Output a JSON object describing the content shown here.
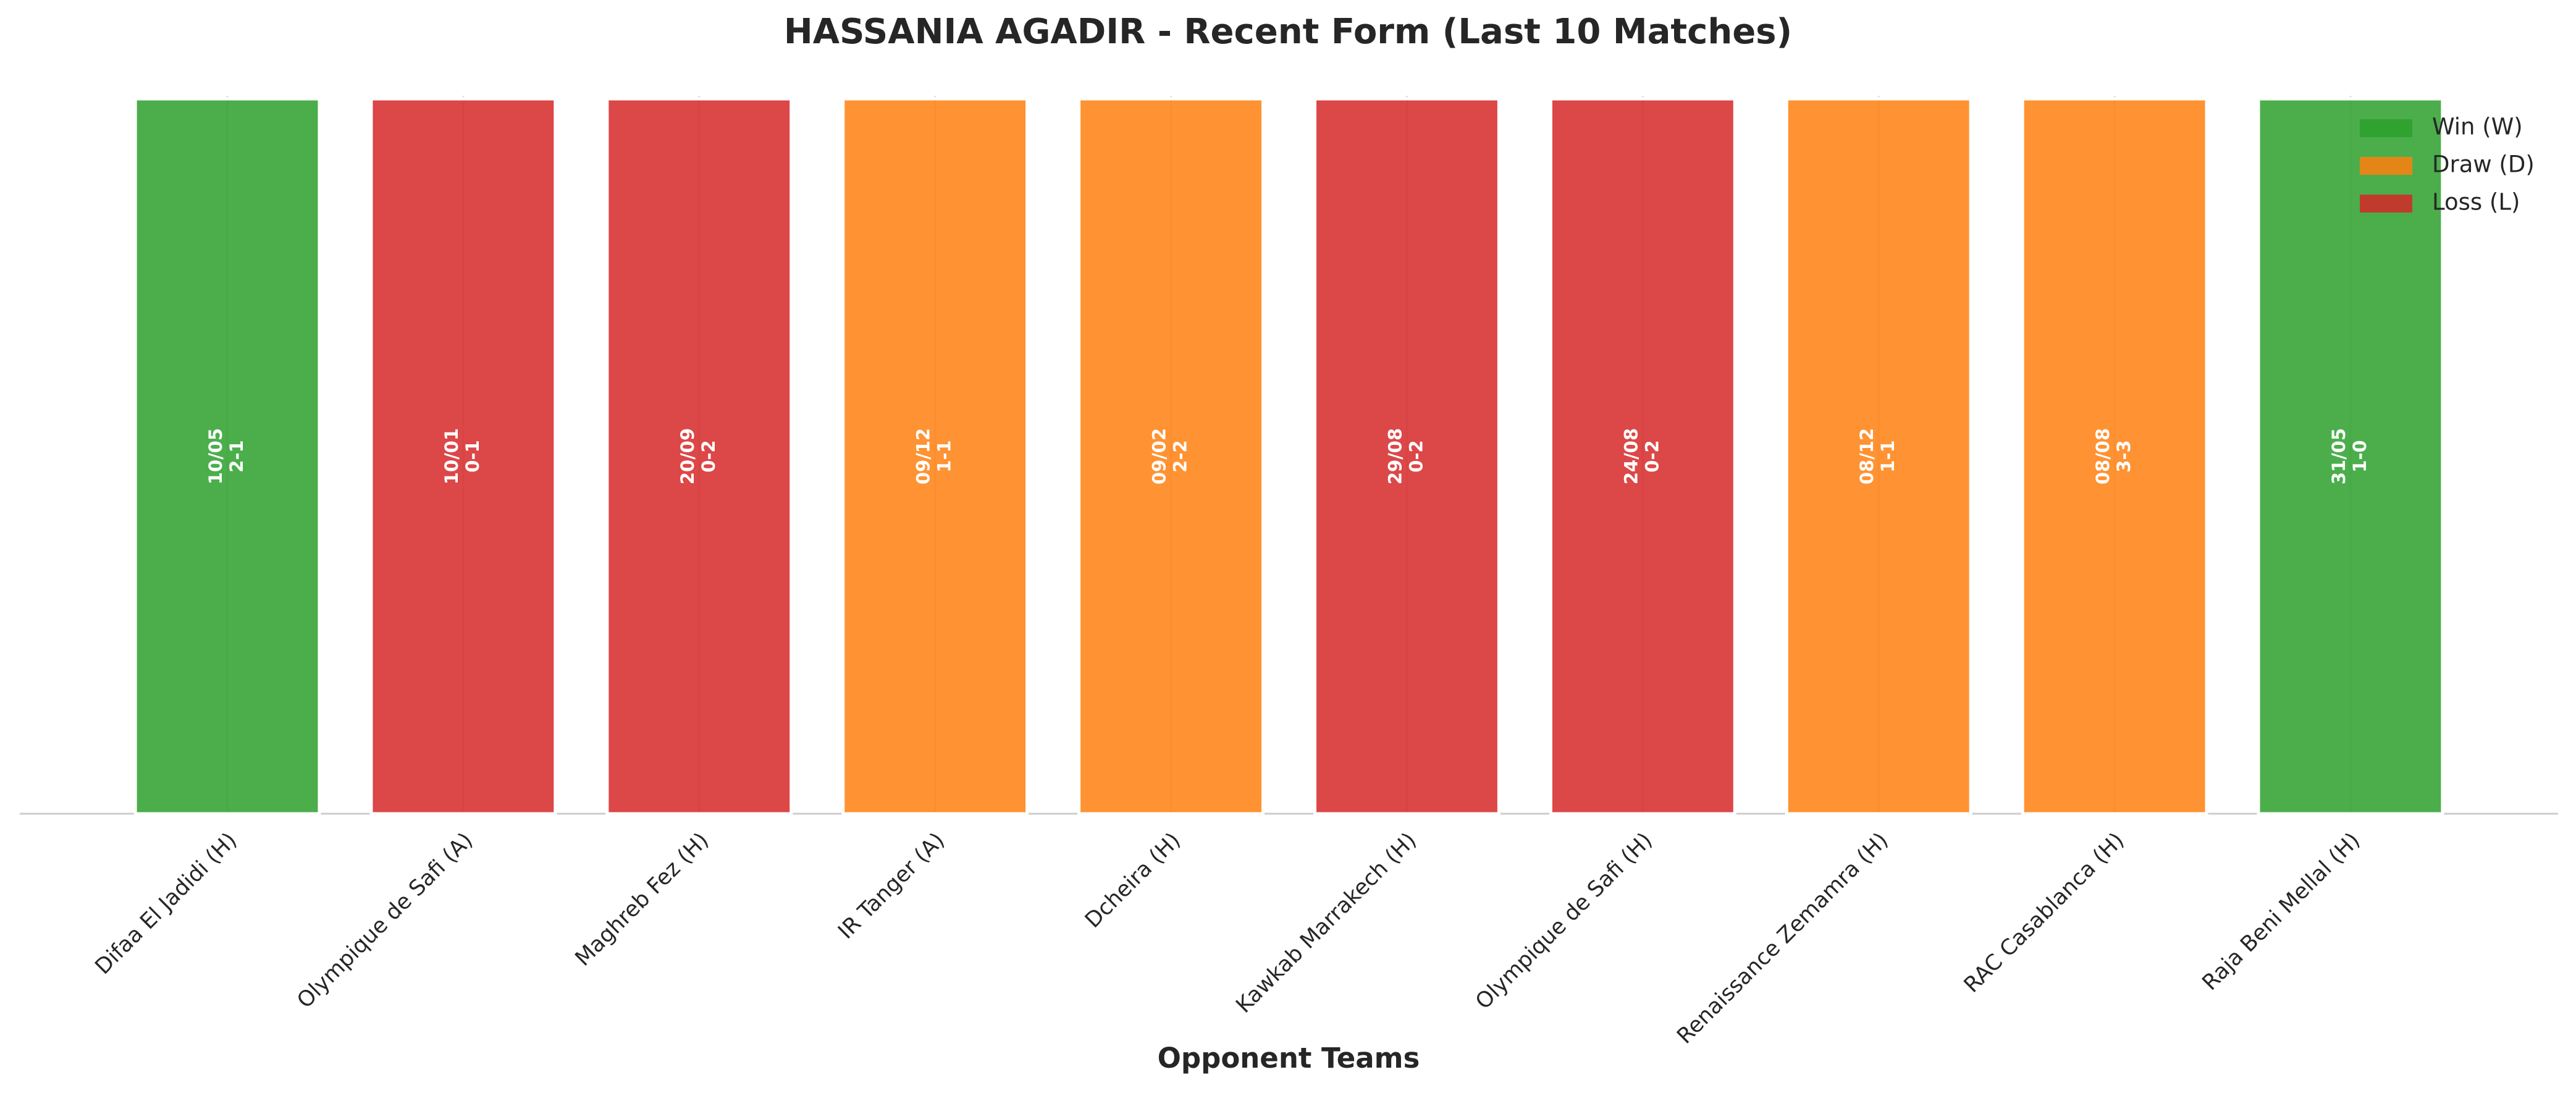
{
  "chart_data": {
    "type": "bar",
    "title": "HASSANIA AGADIR - Recent Form (Last 10 Matches)",
    "x_label": "Opponent Teams",
    "categories": [
      "Difaa El Jadidi (H)",
      "Olympique de Safi (A)",
      "Maghreb Fez (H)",
      "IR Tanger (A)",
      "Dcheira (H)",
      "Kawkab Marrakech (H)",
      "Olympique de Safi (H)",
      "Renaissance Zemamra (H)",
      "RAC Casablanca (H)",
      "Raja Beni Mellal (H)"
    ],
    "values": [
      1,
      1,
      1,
      1,
      1,
      1,
      1,
      1,
      1,
      1
    ],
    "colors": [
      "#2ca02c",
      "#d62728",
      "#d62728",
      "#ff7f0e",
      "#ff7f0e",
      "#d62728",
      "#d62728",
      "#ff7f0e",
      "#ff7f0e",
      "#2ca02c"
    ],
    "bar_labels": [
      {
        "date": "10/05",
        "score": "2-1"
      },
      {
        "date": "10/01",
        "score": "0-1"
      },
      {
        "date": "20/09",
        "score": "0-2"
      },
      {
        "date": "09/12",
        "score": "1-1"
      },
      {
        "date": "09/02",
        "score": "2-2"
      },
      {
        "date": "29/08",
        "score": "0-2"
      },
      {
        "date": "24/08",
        "score": "0-2"
      },
      {
        "date": "08/12",
        "score": "1-1"
      },
      {
        "date": "08/08",
        "score": "3-3"
      },
      {
        "date": "31/05",
        "score": "1-0"
      }
    ],
    "legend": [
      {
        "name": "Win (W)",
        "color": "#2ca02c"
      },
      {
        "name": "Draw (D)",
        "color": "#ff7f0e"
      },
      {
        "name": "Loss (L)",
        "color": "#d62728"
      }
    ],
    "legend_position": "upper right",
    "ylim": [
      0,
      1
    ],
    "grid": true
  }
}
